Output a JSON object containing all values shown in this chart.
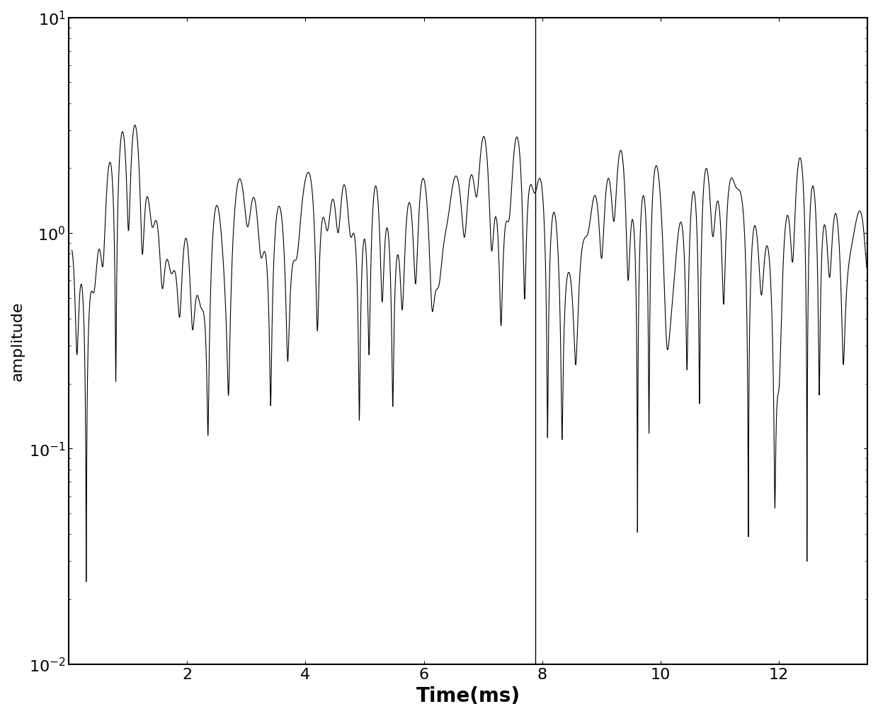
{
  "title": "",
  "xlabel": "Time(ms)",
  "ylabel": "amplitude",
  "xlim": [
    0.0,
    13.5
  ],
  "ylim_log": [
    -2,
    1
  ],
  "vline_x": 7.88,
  "line_color": "#000000",
  "line_width": 0.8,
  "background_color": "#ffffff",
  "xticks": [
    2,
    4,
    6,
    8,
    10,
    12
  ],
  "xlabel_fontsize": 20,
  "ylabel_fontsize": 16,
  "tick_fontsize": 16,
  "seed": 12345,
  "n_points": 8000,
  "t_start": 0.05,
  "t_end": 13.5,
  "n_paths": 60,
  "fd_max": 3000,
  "fd_min": 500
}
